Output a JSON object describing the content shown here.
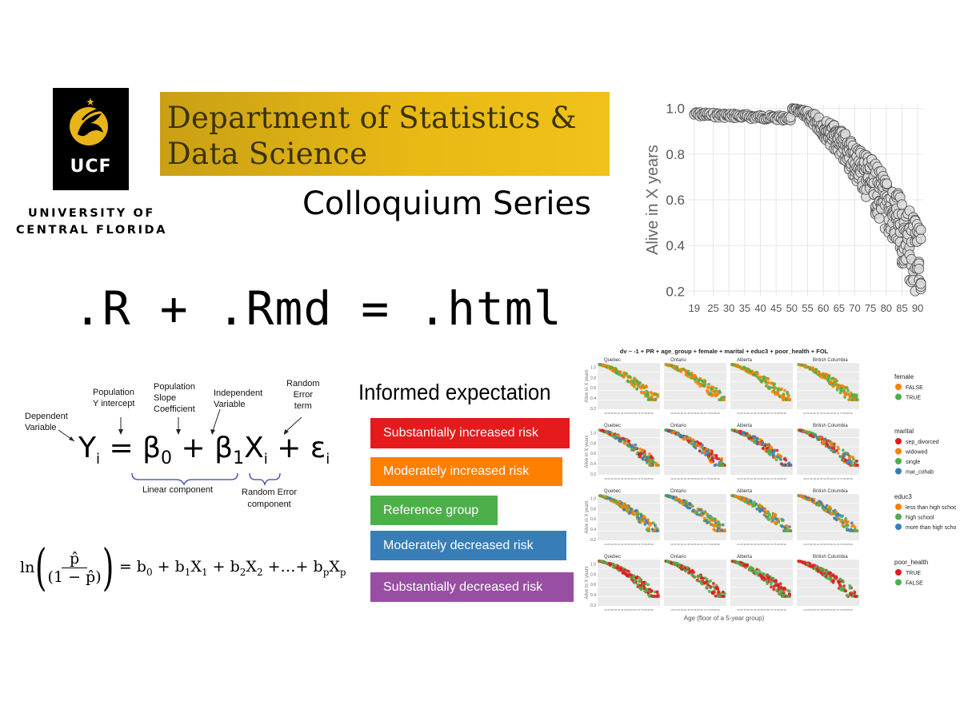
{
  "logo": {
    "wordmark": "UCF",
    "university_line1": "UNIVERSITY OF",
    "university_line2": "CENTRAL FLORIDA"
  },
  "banner": {
    "line1": "Department of Statistics &",
    "line2": "Data Science"
  },
  "subtitle": "Colloquium Series",
  "file_equation": ".R + .Rmd = .html",
  "regression": {
    "dependent": [
      "Dependent",
      "Variable"
    ],
    "intercept": [
      "Population",
      "Y intercept"
    ],
    "slope": [
      "Population",
      "Slope",
      "Coefficient"
    ],
    "independent": [
      "Independent",
      "Variable"
    ],
    "error": [
      "Random",
      "Error",
      "term"
    ],
    "linear_component": "Linear component",
    "random_error_component": [
      "Random Error",
      "component"
    ]
  },
  "informed_title": "Informed expectation",
  "risk_levels": [
    {
      "label": "Substantially increased risk",
      "color": "#e41a1c"
    },
    {
      "label": "Moderately increased risk",
      "color": "#ff7f00"
    },
    {
      "label": "Reference group",
      "color": "#4daf4a"
    },
    {
      "label": "Moderately decreased risk",
      "color": "#377eb8"
    },
    {
      "label": "Substantially decreased risk",
      "color": "#984ea3"
    }
  ],
  "chart_data": [
    {
      "type": "scatter",
      "ylabel": "Alive in X years",
      "xlabel": "",
      "x_ticks": [
        19,
        25,
        30,
        35,
        40,
        45,
        50,
        55,
        60,
        65,
        70,
        75,
        80,
        85,
        90
      ],
      "y_ticks": [
        0.2,
        0.4,
        0.6,
        0.8,
        1.0
      ],
      "ylim": [
        0.18,
        1.02
      ],
      "xlim": [
        17,
        92
      ],
      "grid": true,
      "point_color": "#d9d9d9"
    },
    {
      "type": "scatter",
      "title": "dv ~ -1 + PR + age_group + female + marital + educ3 + poor_health + FOL",
      "facets": [
        "Quebec",
        "Ontario",
        "Alberta",
        "British Columbia"
      ],
      "xlabel": "Age (floor of a 5-year group)",
      "ylabel": "Alive in X years",
      "y_ticks": [
        "0.2",
        "0.4",
        "0.6",
        "0.8",
        "1.0"
      ],
      "rows": [
        {
          "legend_title": "female",
          "entries": [
            {
              "name": "FALSE",
              "color": "#ff7f00"
            },
            {
              "name": "TRUE",
              "color": "#4daf4a"
            }
          ]
        },
        {
          "legend_title": "marital",
          "entries": [
            {
              "name": "sep_divorced",
              "color": "#e41a1c"
            },
            {
              "name": "widowed",
              "color": "#ff7f00"
            },
            {
              "name": "single",
              "color": "#4daf4a"
            },
            {
              "name": "mar_cohab",
              "color": "#377eb8"
            }
          ]
        },
        {
          "legend_title": "educ3",
          "entries": [
            {
              "name": "less than high school",
              "color": "#ff7f00"
            },
            {
              "name": "high school",
              "color": "#4daf4a"
            },
            {
              "name": "more than high school",
              "color": "#377eb8"
            }
          ]
        },
        {
          "legend_title": "poor_health",
          "entries": [
            {
              "name": "TRUE",
              "color": "#e41a1c"
            },
            {
              "name": "FALSE",
              "color": "#4daf4a"
            }
          ]
        }
      ]
    }
  ]
}
